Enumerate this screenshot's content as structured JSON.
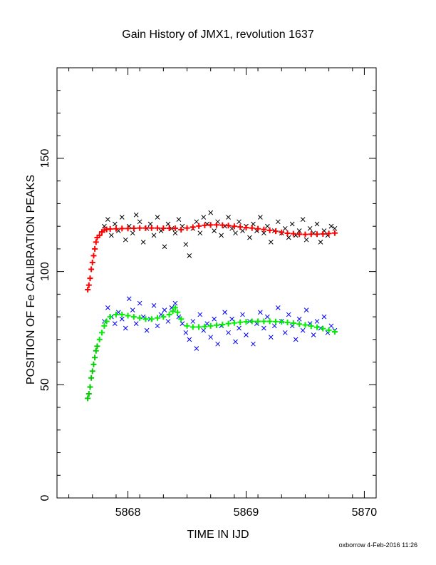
{
  "chart_data": {
    "type": "scatter",
    "title": "Gain History of JMX1, revolution 1637",
    "xlabel": "TIME IN IJD",
    "ylabel": "POSITION OF Fe CALIBRATION PEAKS",
    "footer": "oxborrow  4-Feb-2016 11:26",
    "xlim": [
      5867.4,
      5870.1
    ],
    "ylim": [
      0,
      190
    ],
    "x_ticks": [
      "5868",
      "5869",
      "5870"
    ],
    "x_tick_values": [
      5868,
      5869,
      5870
    ],
    "y_ticks": [
      "0",
      "50",
      "100",
      "150"
    ],
    "y_tick_values": [
      0,
      50,
      100,
      150
    ],
    "grid": false,
    "series": [
      {
        "marker": "plus",
        "color": "#ff0000",
        "x": [
          5867.66,
          5867.67,
          5867.68,
          5867.69,
          5867.7,
          5867.71,
          5867.72,
          5867.73,
          5867.74
        ],
        "values": [
          92,
          94,
          97,
          101,
          104,
          107,
          110,
          113,
          115
        ]
      },
      {
        "marker": "cross",
        "color": "#000000",
        "x": [
          5867.8,
          5867.83,
          5867.86,
          5867.89,
          5867.92,
          5867.95,
          5867.98,
          5868.01,
          5868.04,
          5868.07,
          5868.1,
          5868.13,
          5868.16,
          5868.19,
          5868.22,
          5868.25,
          5868.28,
          5868.31,
          5868.34,
          5868.37,
          5868.4,
          5868.43,
          5868.46,
          5868.49,
          5868.52,
          5868.55,
          5868.58,
          5868.61,
          5868.64,
          5868.67,
          5868.7,
          5868.73,
          5868.76,
          5868.79,
          5868.82,
          5868.85,
          5868.88,
          5868.91,
          5868.94,
          5868.97,
          5869.0,
          5869.03,
          5869.06,
          5869.09,
          5869.12,
          5869.15,
          5869.18,
          5869.21,
          5869.24,
          5869.27,
          5869.3,
          5869.33,
          5869.36,
          5869.39,
          5869.42,
          5869.45,
          5869.48,
          5869.51,
          5869.54,
          5869.57,
          5869.6,
          5869.63,
          5869.66,
          5869.69,
          5869.72,
          5869.75
        ],
        "values": [
          120,
          123,
          116,
          121,
          118,
          124,
          114,
          120,
          117,
          125,
          122,
          113,
          119,
          121,
          116,
          124,
          118,
          111,
          121,
          119,
          117,
          123,
          120,
          112,
          107,
          119,
          122,
          117,
          124,
          121,
          126,
          118,
          122,
          116,
          120,
          124,
          119,
          117,
          122,
          118,
          120,
          115,
          121,
          118,
          124,
          117,
          120,
          113,
          118,
          122,
          117,
          119,
          115,
          121,
          116,
          118,
          123,
          114,
          119,
          117,
          121,
          113,
          118,
          116,
          120,
          119
        ]
      },
      {
        "marker": "plus",
        "color": "#ff0000",
        "x": [
          5867.76,
          5867.78,
          5867.8,
          5867.82,
          5867.85,
          5867.9,
          5867.95,
          5868.0,
          5868.05,
          5868.1,
          5868.15,
          5868.2,
          5868.25,
          5868.3,
          5868.35,
          5868.4,
          5868.45,
          5868.5,
          5868.55,
          5868.6,
          5868.65,
          5868.7,
          5868.75,
          5868.8,
          5868.85,
          5868.9,
          5868.95,
          5869.0,
          5869.05,
          5869.1,
          5869.15,
          5869.2,
          5869.25,
          5869.3,
          5869.35,
          5869.4,
          5869.45,
          5869.5,
          5869.55,
          5869.6,
          5869.65,
          5869.7,
          5869.75
        ],
        "values": [
          116,
          117.5,
          118.3,
          118.6,
          118.8,
          118.9,
          119,
          119,
          119.1,
          119.2,
          119.2,
          119.2,
          119.2,
          119.1,
          119.1,
          119.1,
          118.5,
          119.2,
          119.6,
          120.1,
          120.4,
          120.6,
          120.6,
          120.5,
          120.3,
          120.0,
          119.7,
          119.4,
          119.2,
          118.9,
          118.6,
          118.2,
          117.8,
          117.3,
          116.9,
          116.7,
          116.5,
          116.4,
          116.5,
          116.5,
          116.6,
          116.8,
          117.0
        ]
      },
      {
        "marker": "plus",
        "color": "#00cc00",
        "x": [
          5867.66,
          5867.67,
          5867.68,
          5867.69,
          5867.7,
          5867.71,
          5867.72,
          5867.73,
          5867.74
        ],
        "values": [
          44,
          46,
          49,
          53,
          56,
          59,
          62,
          65,
          67
        ]
      },
      {
        "marker": "cross",
        "color": "#0000ff",
        "x": [
          5867.8,
          5867.83,
          5867.86,
          5867.89,
          5867.92,
          5867.95,
          5867.98,
          5868.01,
          5868.04,
          5868.07,
          5868.1,
          5868.13,
          5868.16,
          5868.19,
          5868.22,
          5868.25,
          5868.28,
          5868.31,
          5868.34,
          5868.37,
          5868.4,
          5868.43,
          5868.46,
          5868.49,
          5868.52,
          5868.55,
          5868.58,
          5868.61,
          5868.64,
          5868.67,
          5868.7,
          5868.73,
          5868.76,
          5868.79,
          5868.82,
          5868.85,
          5868.88,
          5868.91,
          5868.94,
          5868.97,
          5869.0,
          5869.03,
          5869.06,
          5869.09,
          5869.12,
          5869.15,
          5869.18,
          5869.21,
          5869.24,
          5869.27,
          5869.3,
          5869.33,
          5869.36,
          5869.39,
          5869.42,
          5869.45,
          5869.48,
          5869.51,
          5869.54,
          5869.57,
          5869.6,
          5869.63,
          5869.66,
          5869.69,
          5869.72,
          5869.75
        ],
        "values": [
          78,
          84,
          80,
          77,
          82,
          79,
          75,
          88,
          83,
          77,
          86,
          80,
          74,
          79,
          85,
          76,
          81,
          83,
          78,
          84,
          86,
          80,
          77,
          73,
          70,
          78,
          66,
          81,
          74,
          77,
          71,
          79,
          68,
          76,
          82,
          73,
          79,
          69,
          75,
          81,
          72,
          78,
          68,
          77,
          82,
          75,
          80,
          71,
          76,
          84,
          78,
          73,
          81,
          76,
          70,
          79,
          74,
          83,
          77,
          72,
          78,
          75,
          80,
          73,
          76,
          74
        ]
      },
      {
        "marker": "plus",
        "color": "#00ee00",
        "x": [
          5867.76,
          5867.78,
          5867.8,
          5867.82,
          5867.85,
          5867.9,
          5867.95,
          5868.0,
          5868.05,
          5868.1,
          5868.15,
          5868.2,
          5868.25,
          5868.3,
          5868.35,
          5868.38,
          5868.4,
          5868.42,
          5868.45,
          5868.5,
          5868.55,
          5868.6,
          5868.65,
          5868.7,
          5868.75,
          5868.8,
          5868.85,
          5868.9,
          5868.95,
          5869.0,
          5869.05,
          5869.1,
          5869.15,
          5869.2,
          5869.25,
          5869.3,
          5869.35,
          5869.4,
          5869.45,
          5869.5,
          5869.55,
          5869.6,
          5869.65,
          5869.7,
          5869.75
        ],
        "values": [
          70,
          73,
          76,
          78,
          80,
          81,
          81,
          80.5,
          80,
          79.5,
          79,
          79,
          79.5,
          80,
          81,
          82.5,
          84,
          82,
          79,
          76,
          75.5,
          75.5,
          75.7,
          76,
          76.3,
          76.6,
          77,
          77.3,
          77.6,
          77.8,
          78,
          78,
          78,
          78,
          77.9,
          77.8,
          77.5,
          77.2,
          76.8,
          76.4,
          75.9,
          75.4,
          74.8,
          74.1,
          73.4
        ]
      }
    ]
  }
}
